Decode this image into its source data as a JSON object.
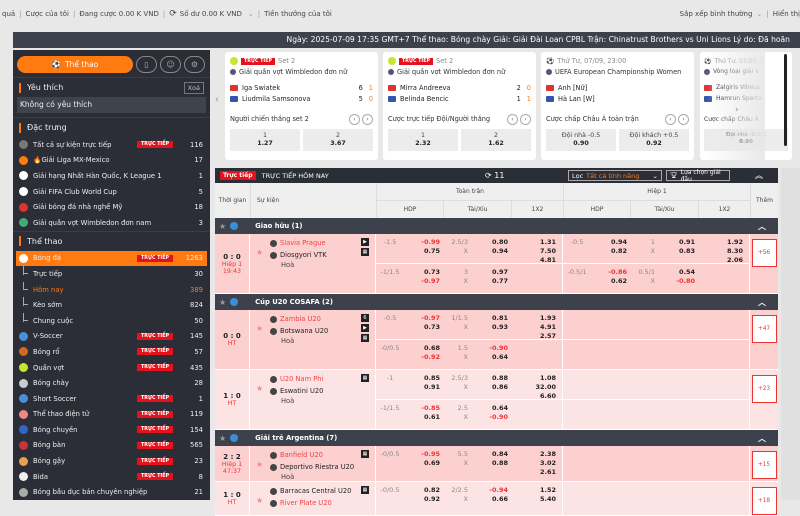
{
  "topbar": {
    "items": [
      "quả",
      "Cược của tôi",
      "Đang cược 0.00 K VND",
      "Số dư 0.00 K VND",
      "Tiền thưởng của tôi"
    ],
    "sort": "Sắp xếp bình thường",
    "display": "Hiển thị"
  },
  "notice": "Ngày: 2025-07-09 17:35 GMT+7 Thể thao: Bóng chày Giải: Giải Đài Loan CPBL Trận: Chinatrust Brothers vs Uni Lions Lý do: Đã hoãn",
  "sidebar": {
    "main_tab": "Thể thao",
    "fav_title": "Yêu thích",
    "fav_clear": "Xoá",
    "fav_empty": "Không có yêu thích",
    "featured_title": "Đặc trưng",
    "featured": [
      {
        "label": "Tất cả sự kiện trực tiếp",
        "live": "TRỰC TIẾP",
        "count": "116",
        "color": "#777"
      },
      {
        "label": "🔥Giải Liga MX-Mexico",
        "count": "17",
        "color": "#ff7a10"
      },
      {
        "label": "Giải hạng Nhất Hàn Quốc, K League 1",
        "count": "1",
        "color": "#fff"
      },
      {
        "label": "Giải FIFA Club World Cup",
        "count": "5",
        "color": "#fff"
      },
      {
        "label": "Giải bóng đá nhà nghề Mỹ",
        "count": "18",
        "color": "#d33"
      },
      {
        "label": "Giải quần vợt Wimbledon đơn nam",
        "count": "3",
        "color": "#4a7"
      }
    ],
    "sports_title": "Thể thao",
    "sports": [
      {
        "label": "Bóng đá",
        "live": "TRỰC TIẾP",
        "count": "1263",
        "color": "#fff",
        "active": true
      },
      {
        "label": "Trực tiếp",
        "count": "30",
        "sub": true
      },
      {
        "label": "Hôm nay",
        "count": "389",
        "sub": true,
        "highlight": true
      },
      {
        "label": "Kèo sớm",
        "count": "824",
        "sub": true
      },
      {
        "label": "Chung cuộc",
        "count": "50",
        "sub": true
      },
      {
        "label": "V-Soccer",
        "live": "TRỰC TIẾP",
        "count": "145",
        "color": "#4a90d9"
      },
      {
        "label": "Bóng rổ",
        "live": "TRỰC TIẾP",
        "count": "57",
        "color": "#d2691e"
      },
      {
        "label": "Quần vợt",
        "live": "TRỰC TIẾP",
        "count": "435",
        "color": "#c8e630"
      },
      {
        "label": "Bóng chày",
        "count": "28",
        "color": "#ccc"
      },
      {
        "label": "Short Soccer",
        "live": "TRỰC TIẾP",
        "count": "1",
        "color": "#4a90d9"
      },
      {
        "label": "Thể thao điện tử",
        "live": "TRỰC TIẾP",
        "count": "119",
        "color": "#e88"
      },
      {
        "label": "Bóng chuyền",
        "live": "TRỰC TIẾP",
        "count": "154",
        "color": "#36c"
      },
      {
        "label": "Bóng bàn",
        "live": "TRỰC TIẾP",
        "count": "565",
        "color": "#c33"
      },
      {
        "label": "Bóng gậy",
        "live": "TRỰC TIẾP",
        "count": "23",
        "color": "#e8a050"
      },
      {
        "label": "Bida",
        "live": "TRỰC TIẾP",
        "count": "8",
        "color": "#eee"
      },
      {
        "label": "Bóng bầu dục bán chuyên nghiệp",
        "count": "21",
        "color": "#aaa"
      }
    ]
  },
  "cards": [
    {
      "badge": "TRỰC TIẾP",
      "status": "Set 2",
      "league": "Giải quần vợt Wimbledon đơn nữ",
      "home": "Iga Swiatek",
      "away": "Liudmila Samsonova",
      "home_score": [
        "6",
        "1"
      ],
      "away_score": [
        "5",
        "0"
      ],
      "market": "Người chiến thắng set 2",
      "odds": [
        {
          "label": "1",
          "value": "1.27"
        },
        {
          "label": "2",
          "value": "3.67"
        }
      ]
    },
    {
      "badge": "TRỰC TIẾP",
      "status": "Set 2",
      "league": "Giải quần vợt Wimbledon đơn nữ",
      "home": "Mirra Andreeva",
      "away": "Belinda Bencic",
      "home_score": [
        "2",
        "0"
      ],
      "away_score": [
        "1",
        "1"
      ],
      "market": "Cược trực tiếp Đội/Người thắng",
      "odds": [
        {
          "label": "1",
          "value": "2.32"
        },
        {
          "label": "2",
          "value": "1.62"
        }
      ]
    },
    {
      "status": "Thứ Tư, 07/09, 23:00",
      "league": "UEFA European Championship Women",
      "home": "Anh [Nữ]",
      "away": "Hà Lan [W]",
      "market": "Cược chấp Châu Á toàn trận",
      "odds": [
        {
          "label": "Đội nhà  -0.5",
          "value": "0.90"
        },
        {
          "label": "Đội khách  +0.5",
          "value": "0.92"
        }
      ]
    },
    {
      "status": "Thứ Tư, 07/09, 2",
      "league": "Vòng loại giải v",
      "home": "Zalgiris Vilnius",
      "away": "Hamrun Sparta",
      "market": "Cược chấp Châu Á",
      "odds": [
        {
          "label": "Đội nhà  -0.5/1",
          "value": "0.90"
        }
      ]
    }
  ],
  "table": {
    "live_tag": "Trực tiếp",
    "title": "TRỰC TIẾP HÔM NAY",
    "count": "11",
    "filter_label": "Lọc",
    "filter_value": "Tất cả tính năng",
    "league_select": "Lựa chọn giải đấu",
    "headers": {
      "time": "Thời gian",
      "event": "Sự kiện",
      "full": "Toàn trận",
      "half": "Hiệp 1",
      "hdp": "HDP",
      "ou": "Tài/Xỉu",
      "x12": "1X2",
      "more": "Thêm"
    },
    "leagues": [
      {
        "name": "Giao hữu (1)",
        "matches": [
          {
            "score": "0 : 0",
            "period": "Hiệp 1",
            "clock": "19:43",
            "home": "Slavia Prague",
            "away": "Diosgyori VTK",
            "draw": "Hoà",
            "red": "home",
            "more": "+56",
            "icons": [
              "▶",
              "▦"
            ],
            "rows": [
              {
                "ft": {
                  "hdp": "-1.5",
                  "hdp_odds": [
                    "-0.99",
                    "0.75"
                  ],
                  "ou": [
                    "2.5/3",
                    "X"
                  ],
                  "ou_odds": [
                    "0.80",
                    "0.94"
                  ],
                  "x12": [
                    "1.31",
                    "7.50",
                    "4.81"
                  ]
                },
                "h1": {
                  "hdp": "-0.5",
                  "hdp_odds": [
                    "0.94",
                    "0.82"
                  ],
                  "ou": [
                    "1",
                    "X"
                  ],
                  "ou_odds": [
                    "0.91",
                    "0.83"
                  ],
                  "x12": [
                    "1.92",
                    "8.30",
                    "2.06"
                  ]
                }
              },
              {
                "ft": {
                  "hdp": "-1/1.5",
                  "hdp_odds": [
                    "0.73",
                    "-0.97"
                  ],
                  "ou": [
                    "3",
                    "X"
                  ],
                  "ou_odds": [
                    "0.97",
                    "0.77"
                  ],
                  "x12": []
                },
                "h1": {
                  "hdp": "-0.5/1",
                  "hdp_odds": [
                    "-0.86",
                    "0.62"
                  ],
                  "ou": [
                    "0.5/1",
                    "X"
                  ],
                  "ou_odds": [
                    "0.54",
                    "-0.80"
                  ],
                  "x12": []
                }
              }
            ]
          }
        ]
      },
      {
        "name": "Cúp U20 COSAFA (2)",
        "matches": [
          {
            "score": "0 : 0",
            "period": "HT",
            "clock": "",
            "home": "Zambia U20",
            "away": "Botswana U20",
            "draw": "Hoà",
            "red": "home",
            "more": "+47",
            "icons": [
              "6",
              "▶",
              "▦"
            ],
            "rows": [
              {
                "ft": {
                  "hdp": "-0.5",
                  "hdp_odds": [
                    "-0.97",
                    "0.73"
                  ],
                  "ou": [
                    "1/1.5",
                    "X"
                  ],
                  "ou_odds": [
                    "0.81",
                    "0.93"
                  ],
                  "x12": [
                    "1.93",
                    "4.91",
                    "2.57"
                  ]
                }
              },
              {
                "ft": {
                  "hdp": "-0/0.5",
                  "hdp_odds": [
                    "0.68",
                    "-0.92"
                  ],
                  "ou": [
                    "1.5",
                    "X"
                  ],
                  "ou_odds": [
                    "-0.90",
                    "0.64"
                  ],
                  "x12": []
                }
              }
            ]
          },
          {
            "score": "1 : 0",
            "period": "HT",
            "clock": "",
            "home": "U20 Nam Phi",
            "away": "Eswatini U20",
            "draw": "Hoà",
            "red": "home",
            "more": "+23",
            "icons": [
              "▦"
            ],
            "rows": [
              {
                "ft": {
                  "hdp": "-1",
                  "hdp_odds": [
                    "0.85",
                    "0.91"
                  ],
                  "ou": [
                    "2.5/3",
                    "X"
                  ],
                  "ou_odds": [
                    "0.88",
                    "0.86"
                  ],
                  "x12": [
                    "1.08",
                    "32.00",
                    "6.60"
                  ]
                }
              },
              {
                "ft": {
                  "hdp": "-1/1.5",
                  "hdp_odds": [
                    "-0.85",
                    "0.61"
                  ],
                  "ou": [
                    "2.5",
                    "X"
                  ],
                  "ou_odds": [
                    "0.64",
                    "-0.90"
                  ],
                  "x12": []
                }
              }
            ]
          }
        ]
      },
      {
        "name": "Giải trẻ Argentina (7)",
        "matches": [
          {
            "score": "2 : 2",
            "period": "Hiệp 1",
            "clock": "47:37",
            "home": "Banfield U20",
            "away": "Deportivo Riestra U20",
            "draw": "Hoà",
            "red": "home",
            "more": "+15",
            "icons": [
              "▦"
            ],
            "rows": [
              {
                "ft": {
                  "hdp": "-0/0.5",
                  "hdp_odds": [
                    "-0.95",
                    "0.69"
                  ],
                  "ou": [
                    "5.5",
                    "X"
                  ],
                  "ou_odds": [
                    "0.84",
                    "0.88"
                  ],
                  "x12": [
                    "2.38",
                    "3.02",
                    "2.61"
                  ]
                }
              }
            ]
          },
          {
            "score": "1 : 0",
            "period": "HT",
            "clock": "",
            "home": "Barracas Central U20",
            "away": "River Plate U20",
            "draw": "",
            "red": "away",
            "more": "+18",
            "icons": [
              "▦"
            ],
            "rows": [
              {
                "ft": {
                  "hdp": "-0/0.5",
                  "hdp_odds": [
                    "0.82",
                    "0.92"
                  ],
                  "ou": [
                    "2/2.5",
                    "X"
                  ],
                  "ou_odds": [
                    "-0.94",
                    "0.66"
                  ],
                  "x12": [
                    "1.52",
                    "5.40"
                  ]
                }
              }
            ]
          }
        ]
      }
    ]
  },
  "colors": {
    "accent": "#ff7a10",
    "live": "#e6111b",
    "sidebar": "#2b2e36",
    "row_live": "#fdd0d0",
    "row_alt": "#fde4e4"
  }
}
